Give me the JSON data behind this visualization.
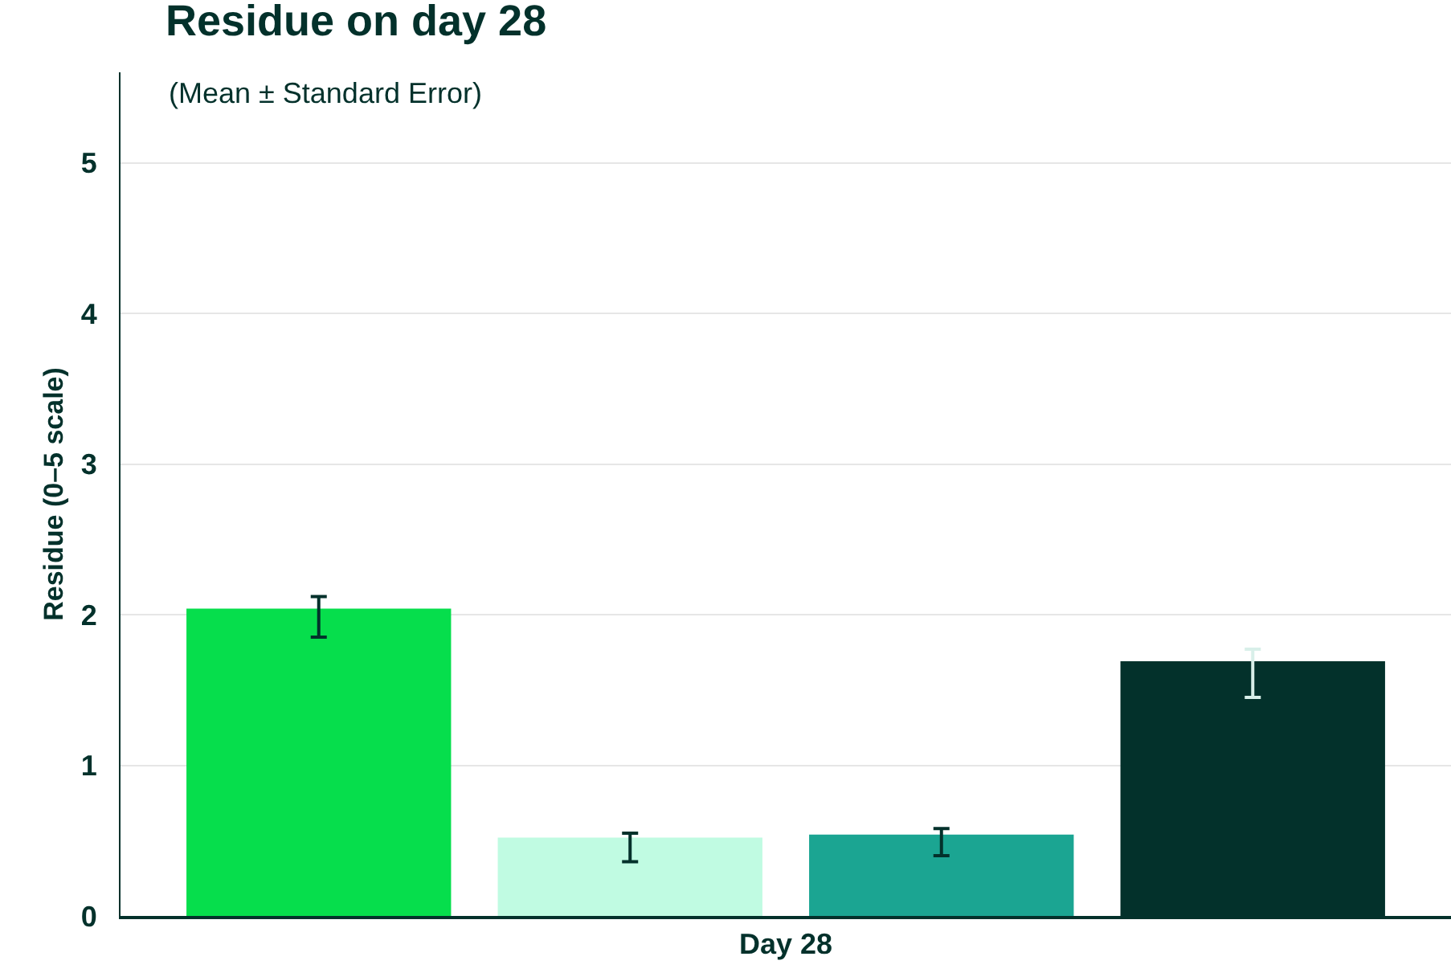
{
  "chart_data": {
    "type": "bar",
    "title": "Residue on day 28",
    "subtitle": "(Mean ± Standard Error)",
    "ylabel": "Residue (0–5 scale)",
    "categories": [
      "Day 28"
    ],
    "series": [
      {
        "color": "#06de4c",
        "values": [
          2.04
        ],
        "errors": [
          [
            1.85,
            2.12
          ]
        ]
      },
      {
        "color": "#c0fbe2",
        "values": [
          0.52
        ],
        "errors": [
          [
            0.36,
            0.55
          ]
        ]
      },
      {
        "color": "#1ba592",
        "values": [
          0.54
        ],
        "errors": [
          [
            0.4,
            0.58
          ]
        ]
      },
      {
        "color": "#03312b",
        "values": [
          1.69
        ],
        "errors": [
          [
            1.45,
            1.77
          ]
        ]
      }
    ],
    "ylim": [
      0,
      5.6
    ],
    "yticks": [
      0,
      1,
      2,
      3,
      4,
      5
    ],
    "grid": "y"
  }
}
